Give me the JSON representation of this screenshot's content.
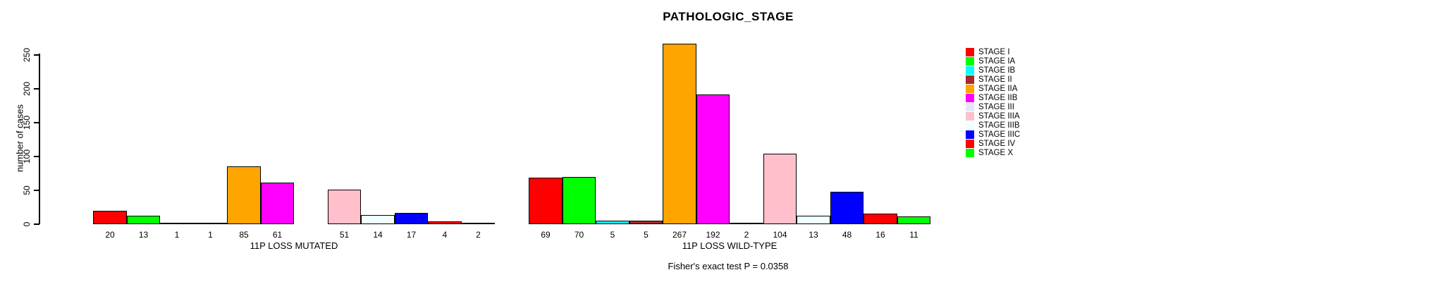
{
  "title": "PATHOLOGIC_STAGE",
  "chart_data": {
    "type": "bar",
    "title": "PATHOLOGIC_STAGE",
    "ylabel": "number of cases",
    "xlabel": "",
    "ylim": [
      0,
      270
    ],
    "yticks": [
      0,
      50,
      100,
      150,
      200,
      250
    ],
    "grid": false,
    "legend_position": "right",
    "categories": [
      "STAGE I",
      "STAGE IA",
      "STAGE IB",
      "STAGE II",
      "STAGE IIA",
      "STAGE IIB",
      "STAGE III",
      "STAGE IIIA",
      "STAGE IIIB",
      "STAGE IIIC",
      "STAGE IV",
      "STAGE X"
    ],
    "colors": [
      "#FF0000",
      "#00FF00",
      "#00FFFF",
      "#A52A2A",
      "#FFA500",
      "#FF00FF",
      "#E6E6FA",
      "#FFC0CB",
      "#F0FFFF",
      "#0000FF",
      "#FF0000",
      "#00FF00"
    ],
    "groups": [
      {
        "label": "11P LOSS MUTATED",
        "values": [
          20,
          13,
          1,
          1,
          85,
          61,
          0,
          51,
          14,
          17,
          4,
          2
        ],
        "value_labels": [
          "20",
          "13",
          "1",
          "1",
          "85",
          "61",
          "",
          "51",
          "14",
          "17",
          "4",
          "2"
        ]
      },
      {
        "label": "11P LOSS WILD-TYPE",
        "values": [
          69,
          70,
          5,
          5,
          267,
          192,
          2,
          104,
          13,
          48,
          16,
          11
        ],
        "value_labels": [
          "69",
          "70",
          "5",
          "5",
          "267",
          "192",
          "2",
          "104",
          "13",
          "48",
          "16",
          "11"
        ]
      }
    ],
    "annotation": "Fisher's exact test P = 0.0358"
  }
}
